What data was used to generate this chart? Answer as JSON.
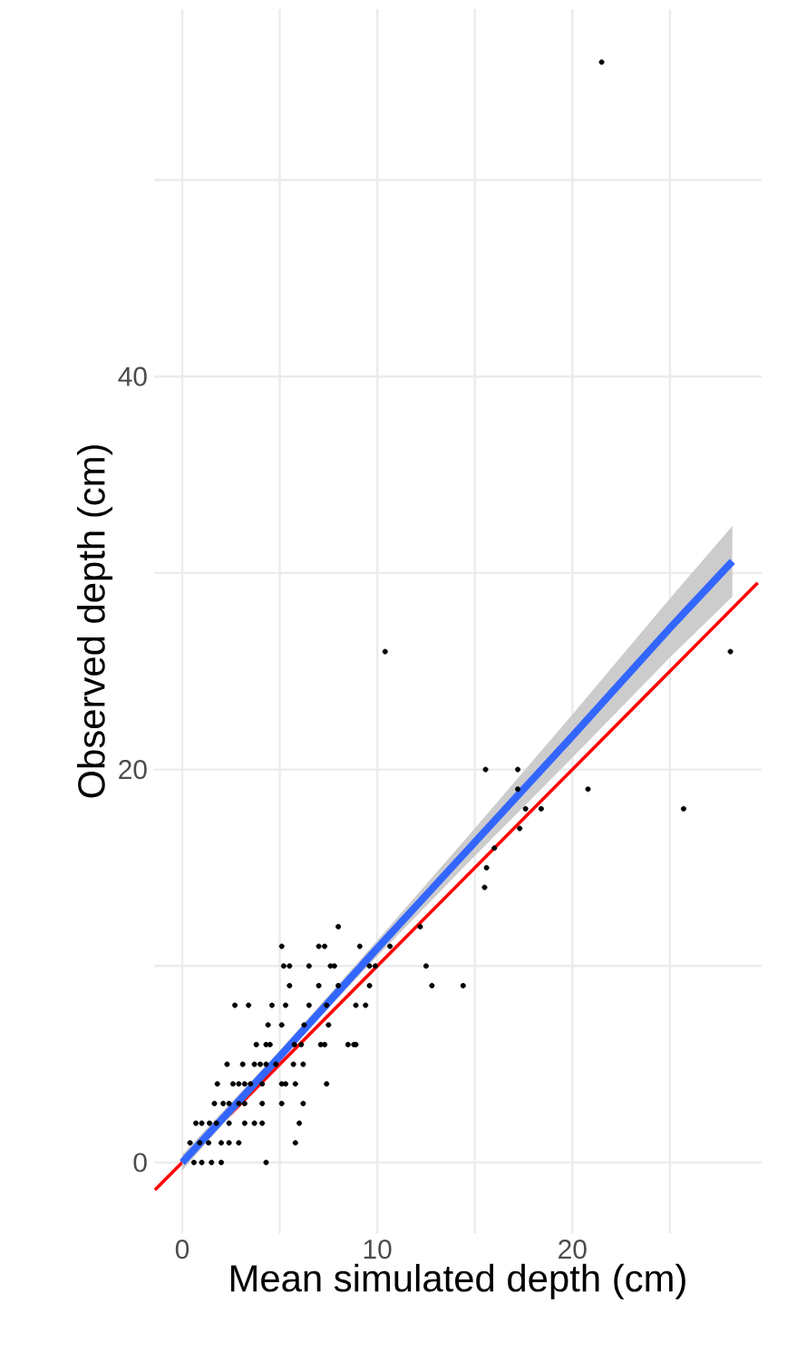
{
  "chart_data": {
    "type": "scatter",
    "xlabel": "Mean simulated depth (cm)",
    "ylabel": "Observed depth (cm)",
    "xlim": [
      -1.44,
      29.7
    ],
    "ylim": [
      -3.6,
      58.7
    ],
    "xticks": [
      0,
      {
        "value": 5,
        "label": null
      },
      10,
      {
        "value": 15,
        "label": null
      },
      20,
      {
        "value": 25,
        "label": null
      }
    ],
    "yticks": [
      0,
      {
        "value": 10,
        "label": null
      },
      20,
      {
        "value": 30,
        "label": null
      },
      40,
      {
        "value": 50,
        "label": null
      }
    ],
    "grid": true,
    "series": [
      {
        "color": "#000000",
        "marker": "circle",
        "x": [
          8.0,
          5.1,
          7.0,
          7.3,
          9.1,
          10.65,
          12.2,
          5.2,
          5.5,
          6.5,
          7.6,
          7.8,
          9.6,
          9.9,
          12.5,
          5.5,
          7.0,
          8.0,
          9.6,
          12.8,
          14.4,
          2.7,
          3.4,
          4.6,
          5.3,
          6.5,
          7.4,
          8.9,
          9.4,
          4.4,
          5.1,
          6.25,
          7.5,
          3.8,
          4.3,
          4.5,
          5.75,
          6.1,
          7.1,
          7.3,
          8.5,
          8.8,
          8.9,
          2.3,
          3.1,
          3.7,
          4.0,
          4.3,
          4.8,
          5.7,
          6.2,
          1.8,
          2.6,
          2.9,
          3.2,
          3.5,
          4.1,
          5.1,
          5.3,
          5.8,
          7.4,
          1.65,
          2.1,
          2.4,
          2.9,
          3.2,
          4.1,
          5.1,
          6.2,
          0.7,
          1.0,
          1.4,
          1.75,
          2.4,
          3.2,
          3.7,
          4.1,
          6.0,
          0.4,
          0.9,
          1.35,
          2.0,
          2.4,
          2.9,
          5.8,
          0.6,
          1.0,
          1.5,
          2.0,
          4.3,
          15.55,
          17.2,
          17.2,
          20.8,
          17.6,
          18.4,
          25.7,
          17.3,
          16.0,
          15.6,
          15.5,
          21.5,
          10.4,
          28.1
        ],
        "values": [
          12,
          11,
          11,
          11,
          11,
          11,
          12,
          10,
          10,
          10,
          10,
          10,
          10,
          10,
          10,
          9,
          9,
          9,
          9,
          9,
          9,
          8,
          8,
          8,
          8,
          8,
          8,
          8,
          8,
          7,
          7,
          7,
          7,
          6,
          6,
          6,
          6,
          6,
          6,
          6,
          6,
          6,
          6,
          5,
          5,
          5,
          5,
          5,
          5,
          5,
          5,
          4,
          4,
          4,
          4,
          4,
          4,
          4,
          4,
          4,
          4,
          3,
          3,
          3,
          3,
          3,
          3,
          3,
          3,
          2,
          2,
          2,
          2,
          2,
          2,
          2,
          2,
          2,
          1,
          1,
          1,
          1,
          1,
          1,
          1,
          0,
          0,
          0,
          0,
          0,
          20,
          20,
          19,
          19,
          18,
          18,
          18,
          17,
          16,
          15,
          14,
          56,
          26,
          26
        ]
      },
      {
        "type": "line",
        "color": "#ff0000",
        "marker": "none",
        "x": [
          -1.4,
          29.5
        ],
        "values": [
          -1.4,
          29.5
        ]
      },
      {
        "type": "line",
        "color": "#3366ff",
        "marker": "none",
        "x": [
          0,
          5,
          10,
          15,
          20,
          25,
          28.2
        ],
        "values": [
          0,
          5.4,
          10.9,
          16.3,
          21.7,
          27.2,
          30.6
        ],
        "lower": [
          -0.4,
          5.2,
          10.5,
          15.6,
          20.6,
          25.7,
          28.8
        ],
        "upper": [
          0.4,
          5.7,
          11.3,
          17.0,
          22.8,
          28.7,
          32.4
        ]
      }
    ]
  }
}
